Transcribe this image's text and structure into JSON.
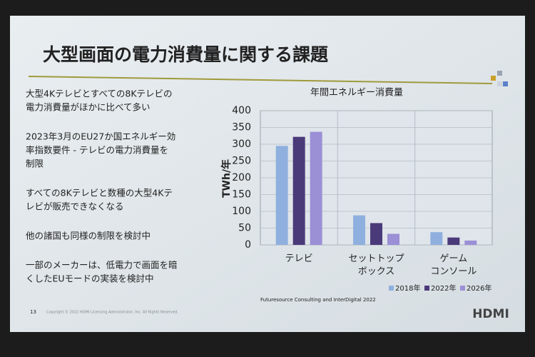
{
  "slide": {
    "title": "大型画面の電力消費量に関する課題",
    "bullets": [
      [
        "大型4Kテレビとすべての8Kテレビの",
        "電力消費量がほかに比べて多い"
      ],
      [
        "2023年3月のEU27か国エネルギー効",
        "率指数要件 - テレビの電力消費量を",
        "制限"
      ],
      [
        "すべての8Kテレビと数種の大型4Kテ",
        "レビが販売できなくなる"
      ],
      [
        "他の諸国も同様の制限を検討中"
      ],
      [
        "一部のメーカーは、低電力で画面を暗",
        "くしたEUモードの実装を検討中"
      ]
    ],
    "page_number": "13",
    "copyright": "Copyright © 2022 HDMI Licensing Administrator, Inc. All Rights Reserved.",
    "logo": "HDMI"
  },
  "chart_data": {
    "type": "bar",
    "title": "年間エネルギー消費量",
    "y_label": "TWh/年",
    "categories": [
      "テレビ",
      "セットトップ\nボックス",
      "ゲーム\nコンソール"
    ],
    "series": [
      {
        "name": "2018年",
        "color": "#8fb0de",
        "values": [
          295,
          88,
          38
        ]
      },
      {
        "name": "2022年",
        "color": "#4b3a7a",
        "values": [
          322,
          65,
          22
        ]
      },
      {
        "name": "2026年",
        "color": "#9b8fd6",
        "values": [
          337,
          33,
          13
        ]
      }
    ],
    "ylim": [
      0,
      400
    ],
    "yticks": [
      0,
      50,
      100,
      150,
      200,
      250,
      300,
      350,
      400
    ],
    "grid": true,
    "source": "Futuresource Consulting and InterDigital 2022"
  }
}
